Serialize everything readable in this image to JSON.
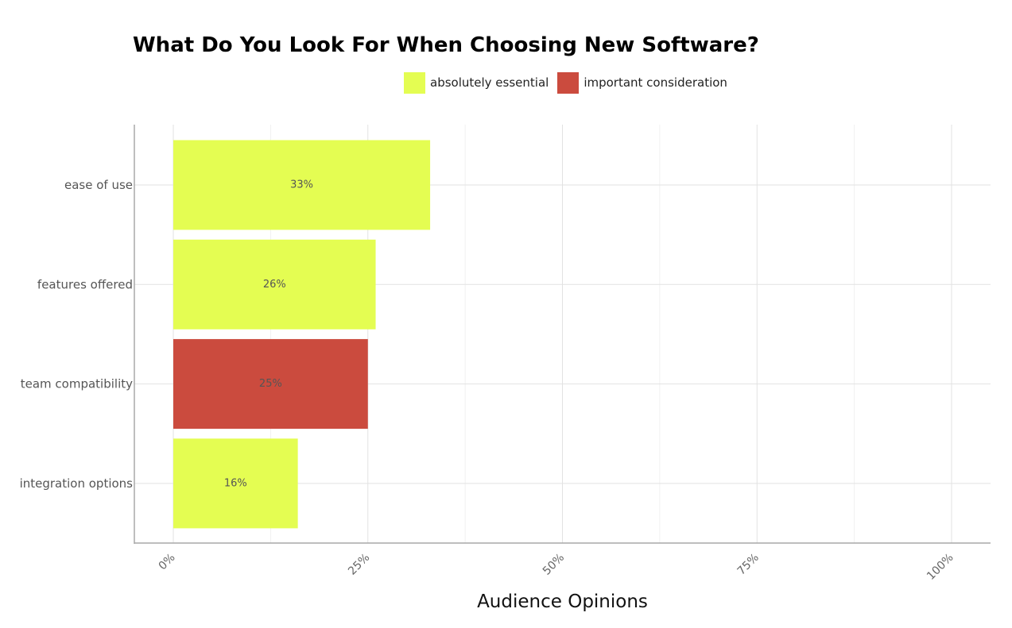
{
  "chart_data": {
    "type": "bar",
    "orientation": "horizontal",
    "title": "What Do You Look For When Choosing New Software?",
    "xlabel": "Audience Opinions",
    "ylabel": "",
    "xlim": [
      0,
      100
    ],
    "x_ticks": [
      {
        "value": 0,
        "label": "0%"
      },
      {
        "value": 25,
        "label": "25%"
      },
      {
        "value": 50,
        "label": "50%"
      },
      {
        "value": 75,
        "label": "75%"
      },
      {
        "value": 100,
        "label": "100%"
      }
    ],
    "grid": true,
    "legend_position": "top",
    "legend": [
      {
        "name": "absolutely essential",
        "color": "#e4fd52"
      },
      {
        "name": "important consideration",
        "color": "#cb4b3e"
      }
    ],
    "categories": [
      "ease of use",
      "features offered",
      "team compatibility",
      "integration options"
    ],
    "values": [
      33,
      26,
      25,
      16
    ],
    "value_labels": [
      "33%",
      "26%",
      "25%",
      "16%"
    ],
    "bar_series": [
      "absolutely essential",
      "absolutely essential",
      "important consideration",
      "absolutely essential"
    ]
  }
}
